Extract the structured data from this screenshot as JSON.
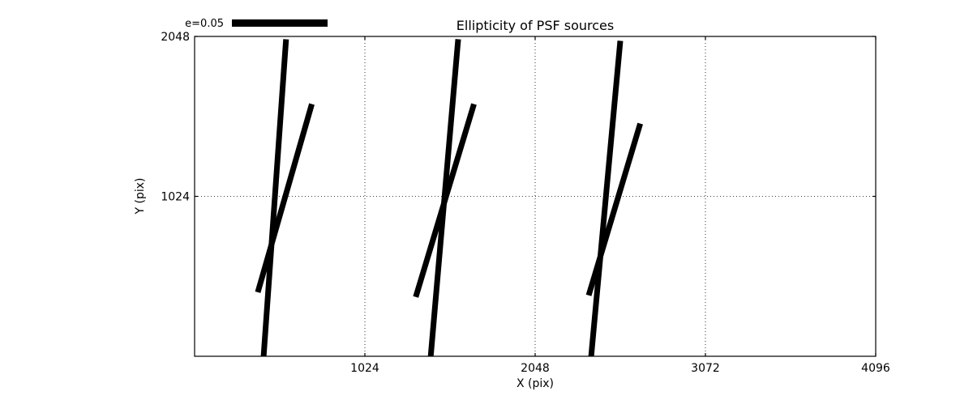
{
  "figure": {
    "background": "#ffffff",
    "foreground": "#000000"
  },
  "chart_data": {
    "type": "line",
    "subtype": "ellipticity-whisker-segments",
    "title": "Ellipticity of PSF sources",
    "xlabel": "X (pix)",
    "ylabel": "Y (pix)",
    "xlim": [
      0,
      4096
    ],
    "ylim": [
      0,
      2048
    ],
    "xticks": [
      1024,
      2048,
      3072,
      4096
    ],
    "yticks": [
      1024,
      2048
    ],
    "grid": true,
    "grid_style": "dotted",
    "legend_position": "top-left-above-axes",
    "scale_key": {
      "label": "e=0.05",
      "bar_color": "#000000"
    },
    "segment_stroke_px": 7,
    "segments": [
      {
        "x1": 550,
        "y1": 2030,
        "x2": 415,
        "y2": 0
      },
      {
        "x1": 705,
        "y1": 1615,
        "x2": 380,
        "y2": 410
      },
      {
        "x1": 1585,
        "y1": 2030,
        "x2": 1420,
        "y2": 0
      },
      {
        "x1": 1680,
        "y1": 1615,
        "x2": 1330,
        "y2": 380
      },
      {
        "x1": 2560,
        "y1": 2020,
        "x2": 2385,
        "y2": 0
      },
      {
        "x1": 2680,
        "y1": 1490,
        "x2": 2370,
        "y2": 390
      }
    ]
  }
}
